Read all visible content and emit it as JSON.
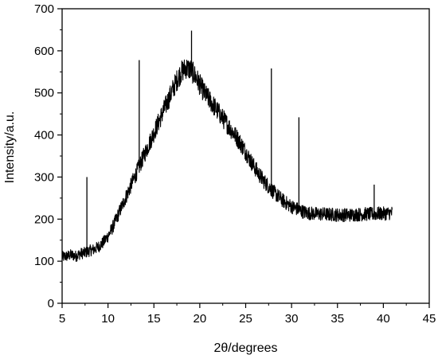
{
  "chart_data": {
    "type": "line",
    "xlabel": "2θ/degrees",
    "ylabel": "Intensity/a.u.",
    "xlim": [
      5,
      45
    ],
    "ylim": [
      0,
      700
    ],
    "xticks": [
      5,
      10,
      15,
      20,
      25,
      30,
      35,
      40,
      45
    ],
    "yticks": [
      0,
      100,
      200,
      300,
      400,
      500,
      600,
      700
    ],
    "grid": false,
    "series": [
      {
        "color": "#000000",
        "x": [
          5.0,
          5.5,
          6.0,
          6.5,
          7.0,
          7.5,
          8.0,
          8.5,
          9.0,
          9.5,
          10.0,
          10.5,
          11.0,
          11.5,
          12.0,
          12.5,
          13.0,
          13.5,
          14.0,
          14.5,
          15.0,
          15.5,
          16.0,
          16.5,
          17.0,
          17.5,
          18.0,
          18.5,
          19.0,
          19.5,
          20.0,
          20.5,
          21.0,
          21.5,
          22.0,
          22.5,
          23.0,
          23.5,
          24.0,
          24.5,
          25.0,
          25.5,
          26.0,
          26.5,
          27.0,
          27.5,
          28.0,
          28.5,
          29.0,
          29.5,
          30.0,
          30.5,
          31.0,
          31.5,
          32.0,
          32.5,
          33.0,
          33.5,
          34.0,
          34.5,
          35.0,
          35.5,
          36.0,
          36.5,
          37.0,
          37.5,
          38.0,
          38.5,
          39.0,
          39.5,
          40.0,
          40.5,
          41.0
        ],
        "y": [
          110,
          112,
          115,
          112,
          118,
          120,
          125,
          128,
          135,
          145,
          160,
          180,
          205,
          230,
          255,
          280,
          305,
          330,
          355,
          380,
          405,
          430,
          455,
          480,
          505,
          530,
          550,
          560,
          555,
          540,
          520,
          500,
          485,
          470,
          455,
          440,
          425,
          410,
          395,
          378,
          360,
          340,
          322,
          305,
          290,
          278,
          265,
          255,
          245,
          237,
          230,
          225,
          220,
          216,
          214,
          213,
          212,
          212,
          211,
          211,
          210,
          210,
          210,
          210,
          211,
          211,
          212,
          212,
          212,
          213,
          213,
          214,
          215
        ]
      }
    ],
    "peaks": [
      {
        "x": 7.7,
        "y": 300
      },
      {
        "x": 13.4,
        "y": 578
      },
      {
        "x": 19.1,
        "y": 648
      },
      {
        "x": 27.8,
        "y": 558
      },
      {
        "x": 30.8,
        "y": 442
      },
      {
        "x": 39.0,
        "y": 282
      }
    ]
  }
}
